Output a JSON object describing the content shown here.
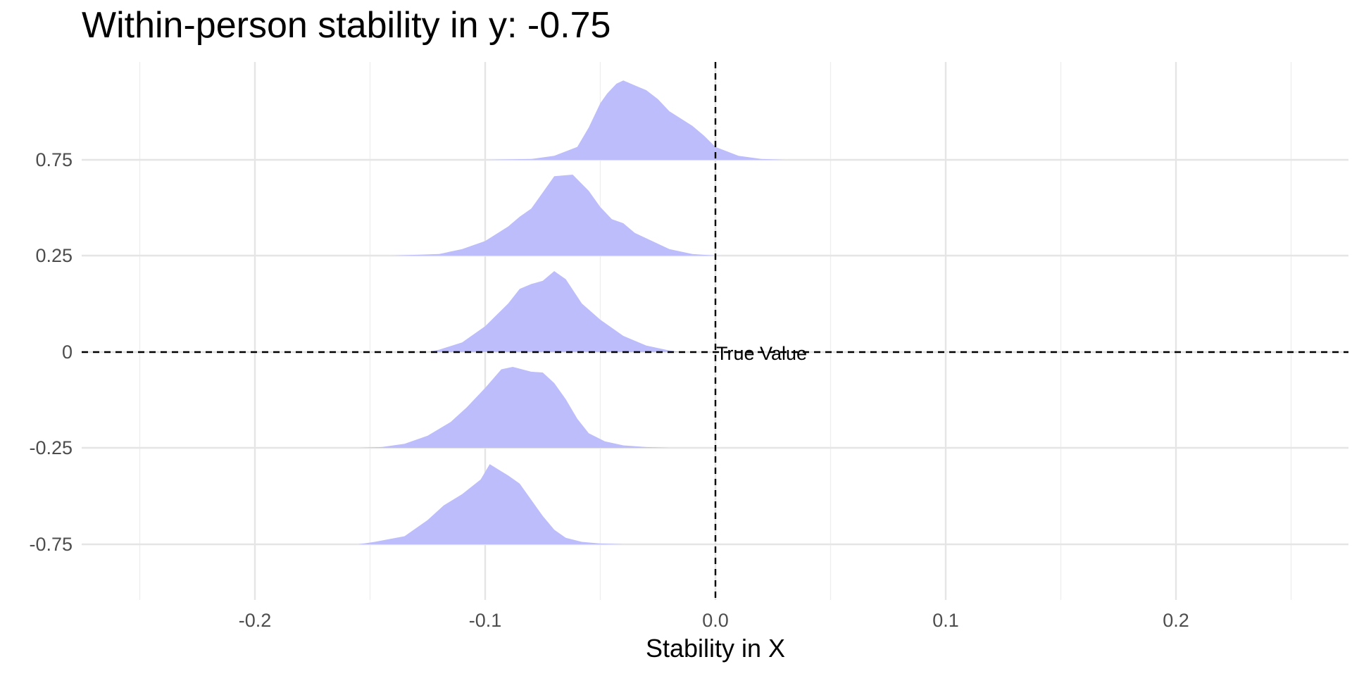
{
  "chart_data": {
    "type": "area",
    "subtype": "ridgeline-density",
    "title": "Within-person stability in y: -0.75",
    "xlabel": "Stability in X",
    "ylabel": "",
    "xlim": [
      -0.275,
      0.275
    ],
    "x_ticks": [
      -0.2,
      -0.1,
      0.0,
      0.1,
      0.2
    ],
    "x_tick_labels": [
      "-0.2",
      "-0.1",
      "0.0",
      "0.1",
      "0.2"
    ],
    "y_categories": [
      "-0.75",
      "-0.25",
      "0",
      "0.25",
      "0.75"
    ],
    "grid": true,
    "fill_color": "#bdbdfb",
    "reference_lines": {
      "vertical_x": 0.0,
      "horizontal_category": "0",
      "label": "True Value"
    },
    "series": [
      {
        "category": "-0.75",
        "x": [
          -0.155,
          -0.148,
          -0.135,
          -0.125,
          -0.118,
          -0.11,
          -0.102,
          -0.098,
          -0.094,
          -0.09,
          -0.085,
          -0.08,
          -0.075,
          -0.07,
          -0.065,
          -0.058,
          -0.05,
          -0.04
        ],
        "density": [
          0.0,
          0.03,
          0.1,
          0.3,
          0.48,
          0.62,
          0.8,
          0.99,
          0.92,
          0.85,
          0.75,
          0.55,
          0.35,
          0.18,
          0.08,
          0.03,
          0.01,
          0.0
        ]
      },
      {
        "category": "-0.25",
        "x": [
          -0.155,
          -0.145,
          -0.135,
          -0.125,
          -0.115,
          -0.108,
          -0.1,
          -0.093,
          -0.088,
          -0.08,
          -0.075,
          -0.07,
          -0.065,
          -0.06,
          -0.055,
          -0.048,
          -0.04,
          -0.03,
          -0.02
        ],
        "density": [
          0.0,
          0.01,
          0.05,
          0.15,
          0.32,
          0.5,
          0.74,
          0.97,
          1.0,
          0.94,
          0.93,
          0.8,
          0.6,
          0.36,
          0.18,
          0.08,
          0.03,
          0.01,
          0.0
        ]
      },
      {
        "category": "0",
        "x": [
          -0.125,
          -0.12,
          -0.11,
          -0.1,
          -0.09,
          -0.085,
          -0.08,
          -0.075,
          -0.07,
          -0.065,
          -0.058,
          -0.05,
          -0.04,
          -0.03,
          -0.02,
          -0.015
        ],
        "density": [
          0.0,
          0.03,
          0.12,
          0.32,
          0.6,
          0.78,
          0.84,
          0.88,
          1.0,
          0.9,
          0.6,
          0.4,
          0.2,
          0.08,
          0.02,
          0.0
        ]
      },
      {
        "category": "0.25",
        "x": [
          -0.14,
          -0.12,
          -0.11,
          -0.1,
          -0.09,
          -0.085,
          -0.08,
          -0.075,
          -0.07,
          -0.062,
          -0.055,
          -0.05,
          -0.045,
          -0.04,
          -0.035,
          -0.02,
          -0.01,
          0.0
        ],
        "density": [
          0.0,
          0.02,
          0.08,
          0.18,
          0.36,
          0.48,
          0.58,
          0.78,
          0.98,
          1.0,
          0.8,
          0.6,
          0.45,
          0.4,
          0.28,
          0.08,
          0.02,
          0.0
        ]
      },
      {
        "category": "0.75",
        "x": [
          -0.1,
          -0.08,
          -0.07,
          -0.06,
          -0.055,
          -0.05,
          -0.047,
          -0.043,
          -0.04,
          -0.035,
          -0.03,
          -0.025,
          -0.02,
          -0.01,
          -0.005,
          0.0,
          0.01,
          0.02,
          0.03
        ],
        "density": [
          0.0,
          0.01,
          0.05,
          0.16,
          0.4,
          0.7,
          0.82,
          0.94,
          0.98,
          0.92,
          0.86,
          0.75,
          0.6,
          0.42,
          0.3,
          0.16,
          0.05,
          0.01,
          0.0
        ]
      }
    ]
  }
}
